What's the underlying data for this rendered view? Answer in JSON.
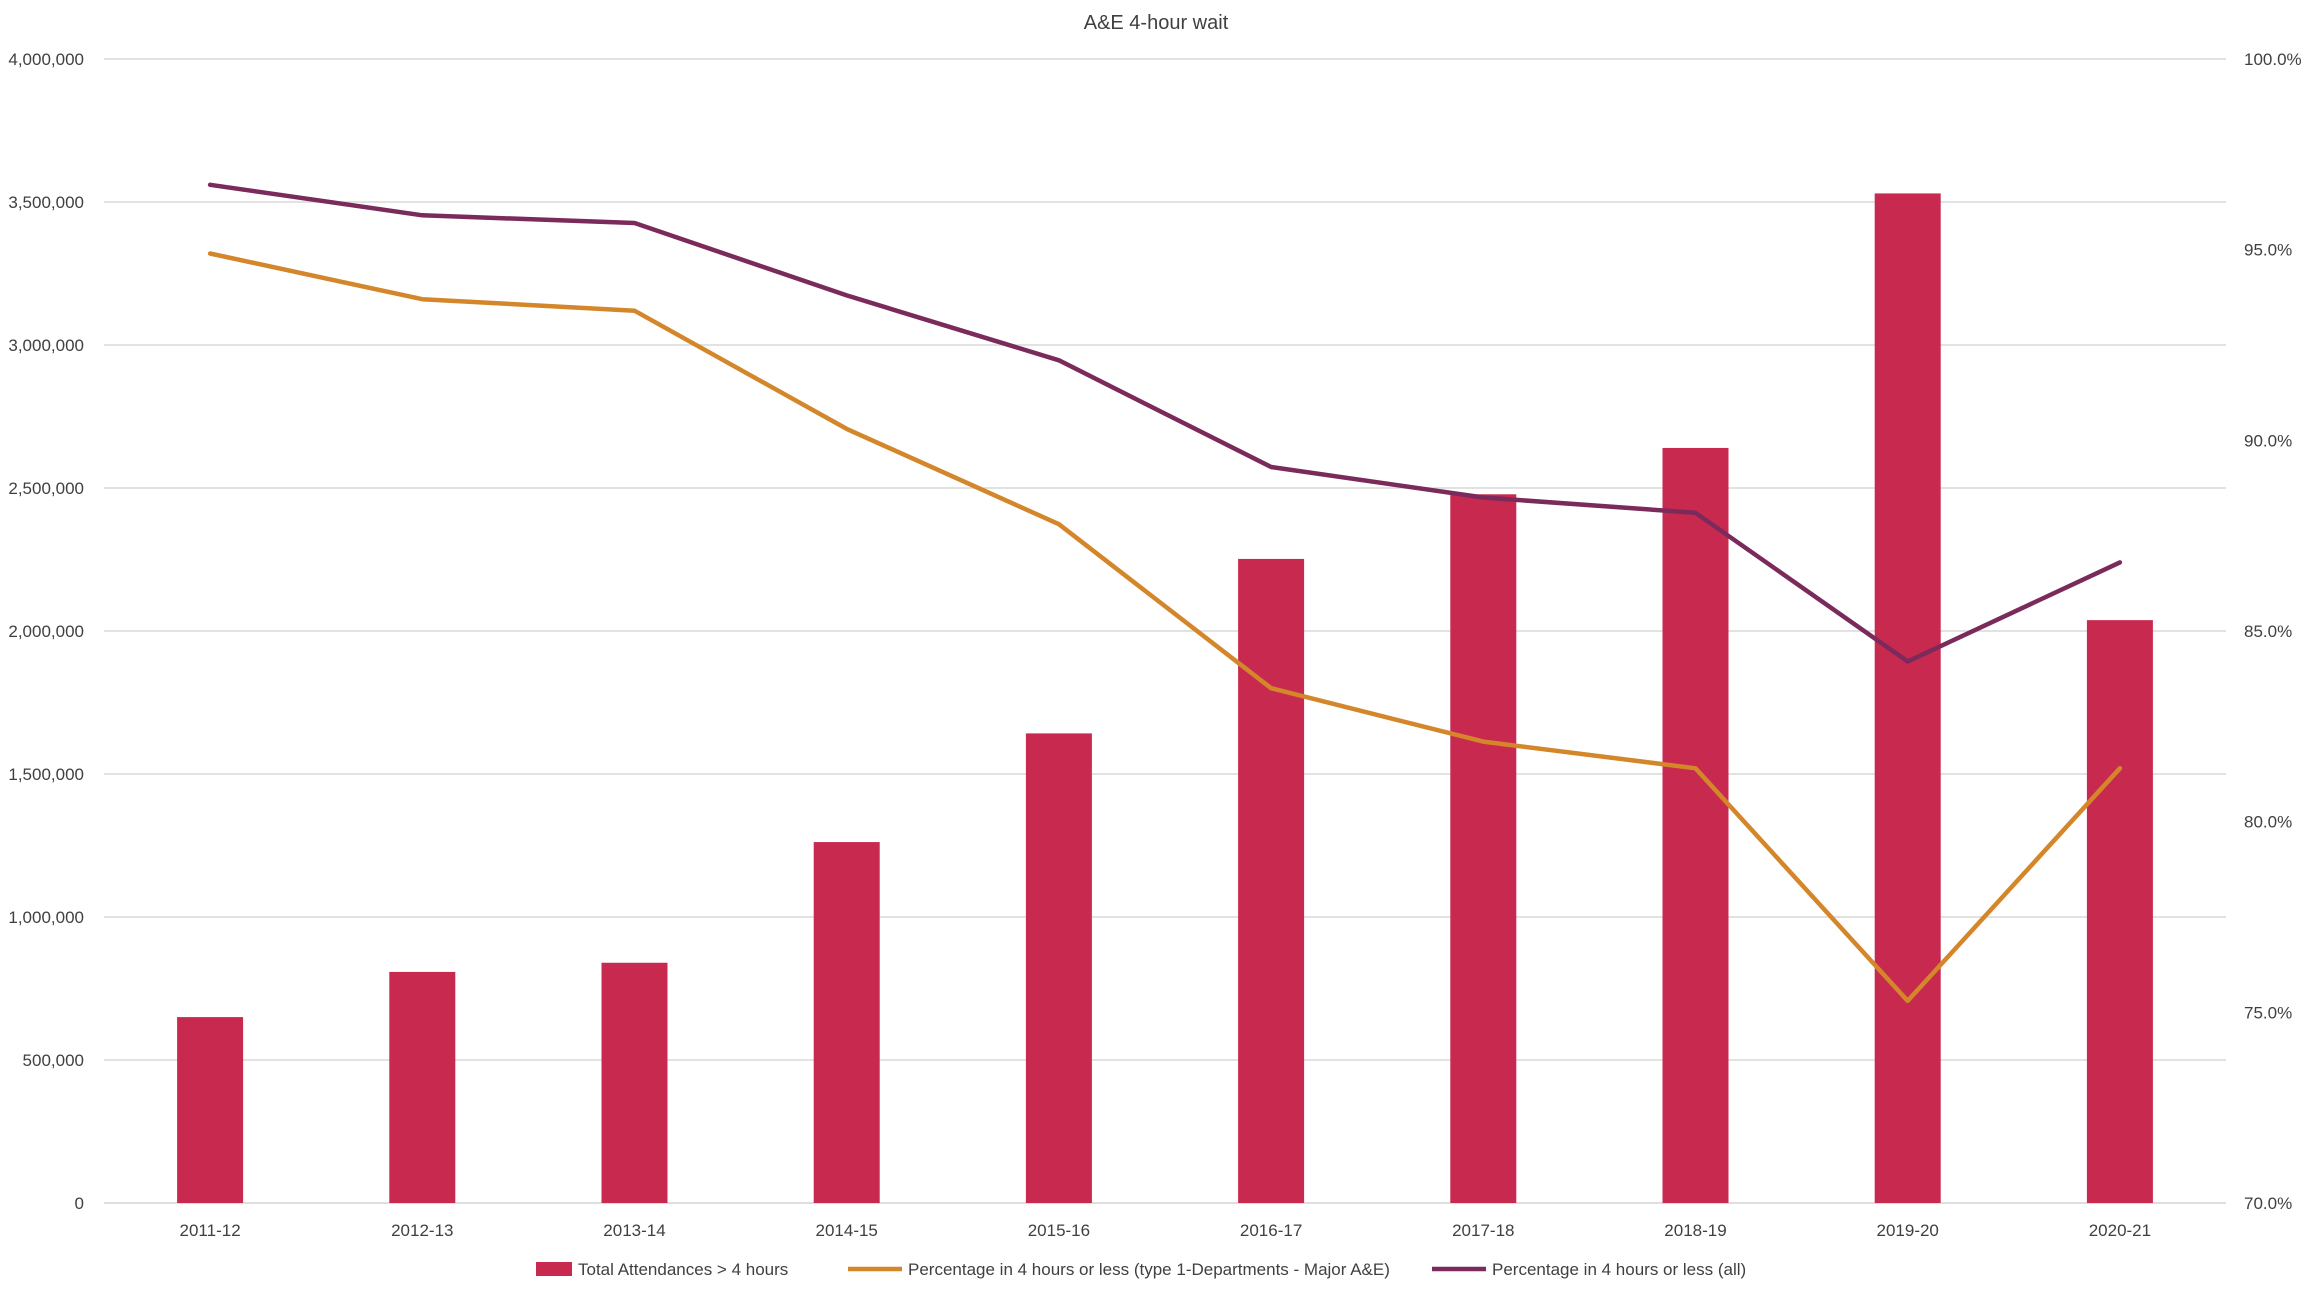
{
  "chart_data": {
    "type": "bar",
    "title": "A&E 4-hour wait",
    "categories": [
      "2011-12",
      "2012-13",
      "2013-14",
      "2014-15",
      "2015-16",
      "2016-17",
      "2017-18",
      "2018-19",
      "2019-20",
      "2020-21"
    ],
    "bar_series": {
      "name": "Total Attendances > 4 hours",
      "axis": "left",
      "color": "#c8294f",
      "values": [
        650000,
        808000,
        840000,
        1262000,
        1642000,
        2252000,
        2478000,
        2640000,
        3530000,
        2038000
      ]
    },
    "line_series": [
      {
        "name": "Percentage in 4 hours or less (type 1-Departments - Major A&E)",
        "axis": "right",
        "color": "#d4862a",
        "values": [
          94.9,
          93.7,
          93.4,
          90.3,
          87.8,
          83.5,
          82.1,
          81.4,
          75.3,
          81.4
        ]
      },
      {
        "name": "Percentage in 4 hours or less (all)",
        "axis": "right",
        "color": "#7b2a5c",
        "values": [
          96.7,
          95.9,
          95.7,
          93.8,
          92.1,
          89.3,
          88.5,
          88.1,
          84.2,
          86.8
        ]
      }
    ],
    "y_left": {
      "min": 0,
      "max": 4000000,
      "ticks": [
        0,
        500000,
        1000000,
        1500000,
        2000000,
        2500000,
        3000000,
        3500000,
        4000000
      ],
      "tick_labels": [
        "0",
        "500,000",
        "1,000,000",
        "1,500,000",
        "2,000,000",
        "2,500,000",
        "3,000,000",
        "3,500,000",
        "4,000,000"
      ]
    },
    "y_right": {
      "min": 70,
      "max": 100,
      "ticks": [
        70,
        75,
        80,
        85,
        90,
        95,
        100
      ],
      "tick_labels": [
        "70.0%",
        "75.0%",
        "80.0%",
        "85.0%",
        "90.0%",
        "95.0%",
        "100.0%"
      ]
    },
    "grid": true,
    "legend_position": "bottom",
    "colors": {
      "grid": "#d9d9d9",
      "text": "#404040"
    }
  }
}
